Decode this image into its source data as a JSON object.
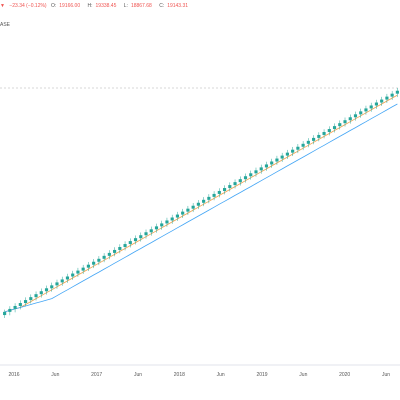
{
  "header": {
    "change_arrow_icon": "triangle-down-icon",
    "change": "−23.34 (−0.12%)",
    "open_label": "O:",
    "open": "19166.00",
    "high_label": "H:",
    "high": "19338.45",
    "low_label": "L:",
    "low": "18867.68",
    "close_label": "C:",
    "close": "19143.31"
  },
  "sub_label": "ASE",
  "colors": {
    "up": "#26a69a",
    "down": "#ef5350",
    "ma_fast": "#f0a350",
    "ma_slow": "#42a5f5",
    "price_line": "#b0b0b0",
    "axis_text": "#555555"
  },
  "chart_data": {
    "type": "candlestick",
    "x_tick_labels": [
      "2016",
      "Jun",
      "2017",
      "Jun",
      "2018",
      "Jun",
      "2019",
      "Jun",
      "2020",
      "Jun"
    ],
    "horizontal_reference_line": "dashed",
    "moving_averages": [
      "fast",
      "slow"
    ],
    "candles": [
      [
        100.0,
        102.4,
        98.7,
        101.4
      ],
      [
        101.4,
        103.9,
        99.9,
        102.7
      ],
      [
        102.7,
        105.2,
        101.2,
        104.0
      ],
      [
        104.0,
        106.5,
        102.5,
        105.3
      ],
      [
        105.3,
        107.8,
        103.8,
        106.6
      ],
      [
        106.6,
        109.1,
        105.1,
        107.9
      ],
      [
        107.9,
        110.4,
        106.4,
        109.2
      ],
      [
        109.2,
        111.7,
        107.7,
        110.5
      ],
      [
        110.5,
        113.0,
        109.0,
        111.8
      ],
      [
        111.8,
        114.3,
        110.3,
        113.1
      ],
      [
        113.1,
        115.6,
        111.6,
        114.4
      ],
      [
        114.4,
        116.9,
        112.9,
        115.7
      ],
      [
        115.7,
        118.2,
        114.2,
        117.0
      ],
      [
        117.0,
        119.5,
        115.5,
        118.3
      ],
      [
        118.3,
        120.8,
        116.8,
        119.6
      ],
      [
        119.6,
        122.1,
        118.1,
        120.9
      ],
      [
        120.9,
        123.4,
        119.4,
        122.2
      ],
      [
        122.2,
        124.7,
        120.7,
        123.5
      ],
      [
        123.5,
        126.0,
        122.0,
        124.8
      ],
      [
        124.8,
        127.3,
        123.3,
        126.1
      ],
      [
        126.1,
        128.6,
        124.6,
        127.4
      ],
      [
        127.4,
        129.9,
        125.9,
        128.7
      ],
      [
        128.7,
        131.2,
        127.2,
        130.0
      ],
      [
        130.0,
        132.5,
        128.5,
        131.3
      ],
      [
        131.3,
        133.8,
        129.8,
        132.6
      ],
      [
        132.6,
        135.1,
        131.1,
        133.9
      ],
      [
        133.9,
        136.4,
        132.4,
        135.2
      ],
      [
        135.2,
        137.7,
        133.7,
        136.5
      ],
      [
        136.5,
        139.0,
        135.0,
        137.8
      ],
      [
        137.8,
        140.3,
        136.3,
        139.1
      ],
      [
        139.1,
        141.6,
        137.6,
        140.4
      ],
      [
        140.4,
        142.9,
        138.9,
        141.7
      ],
      [
        141.7,
        144.2,
        140.2,
        143.0
      ],
      [
        143.0,
        145.5,
        141.5,
        144.3
      ],
      [
        144.3,
        146.8,
        142.8,
        145.6
      ],
      [
        145.6,
        148.1,
        144.1,
        146.9
      ],
      [
        146.9,
        149.4,
        145.4,
        148.2
      ],
      [
        148.2,
        150.7,
        146.7,
        149.5
      ],
      [
        149.5,
        152.0,
        148.0,
        150.8
      ],
      [
        150.8,
        153.3,
        149.3,
        152.1
      ],
      [
        152.1,
        154.6,
        150.6,
        153.4
      ],
      [
        153.4,
        155.9,
        151.9,
        154.7
      ],
      [
        154.7,
        157.2,
        153.2,
        156.0
      ],
      [
        156.0,
        158.5,
        154.5,
        157.3
      ],
      [
        157.3,
        159.8,
        155.8,
        158.6
      ],
      [
        158.6,
        161.1,
        157.1,
        159.9
      ],
      [
        159.9,
        162.4,
        158.4,
        161.2
      ],
      [
        161.2,
        163.7,
        159.7,
        162.5
      ],
      [
        162.5,
        165.0,
        161.0,
        163.8
      ],
      [
        163.8,
        166.3,
        162.3,
        165.1
      ],
      [
        165.1,
        167.6,
        163.6,
        166.4
      ],
      [
        166.4,
        168.9,
        164.9,
        167.7
      ],
      [
        167.7,
        170.2,
        166.2,
        169.0
      ],
      [
        169.0,
        171.5,
        167.5,
        170.3
      ],
      [
        170.3,
        172.8,
        168.8,
        171.6
      ],
      [
        171.6,
        174.1,
        170.1,
        172.9
      ],
      [
        172.9,
        175.4,
        171.4,
        174.2
      ],
      [
        174.2,
        176.7,
        172.7,
        175.5
      ],
      [
        175.5,
        178.0,
        174.0,
        176.8
      ],
      [
        176.8,
        179.3,
        175.3,
        178.1
      ],
      [
        178.1,
        180.6,
        176.6,
        179.4
      ],
      [
        179.4,
        181.9,
        177.9,
        180.7
      ],
      [
        180.7,
        183.2,
        179.2,
        182.0
      ],
      [
        182.0,
        184.5,
        180.5,
        183.3
      ],
      [
        183.3,
        185.8,
        181.8,
        184.6
      ],
      [
        184.6,
        187.1,
        183.1,
        185.9
      ],
      [
        185.9,
        188.4,
        184.4,
        187.2
      ],
      [
        187.2,
        189.7,
        185.7,
        188.5
      ],
      [
        188.5,
        191.0,
        187.0,
        189.8
      ],
      [
        189.8,
        192.3,
        188.3,
        191.1
      ],
      [
        191.1,
        193.6,
        189.6,
        192.4
      ],
      [
        192.4,
        194.9,
        190.9,
        193.7
      ],
      [
        193.7,
        196.2,
        192.2,
        195.0
      ],
      [
        195.0,
        197.5,
        193.5,
        196.3
      ],
      [
        196.3,
        198.8,
        194.8,
        197.6
      ],
      [
        197.6,
        200.1,
        196.1,
        198.9
      ]
    ]
  }
}
